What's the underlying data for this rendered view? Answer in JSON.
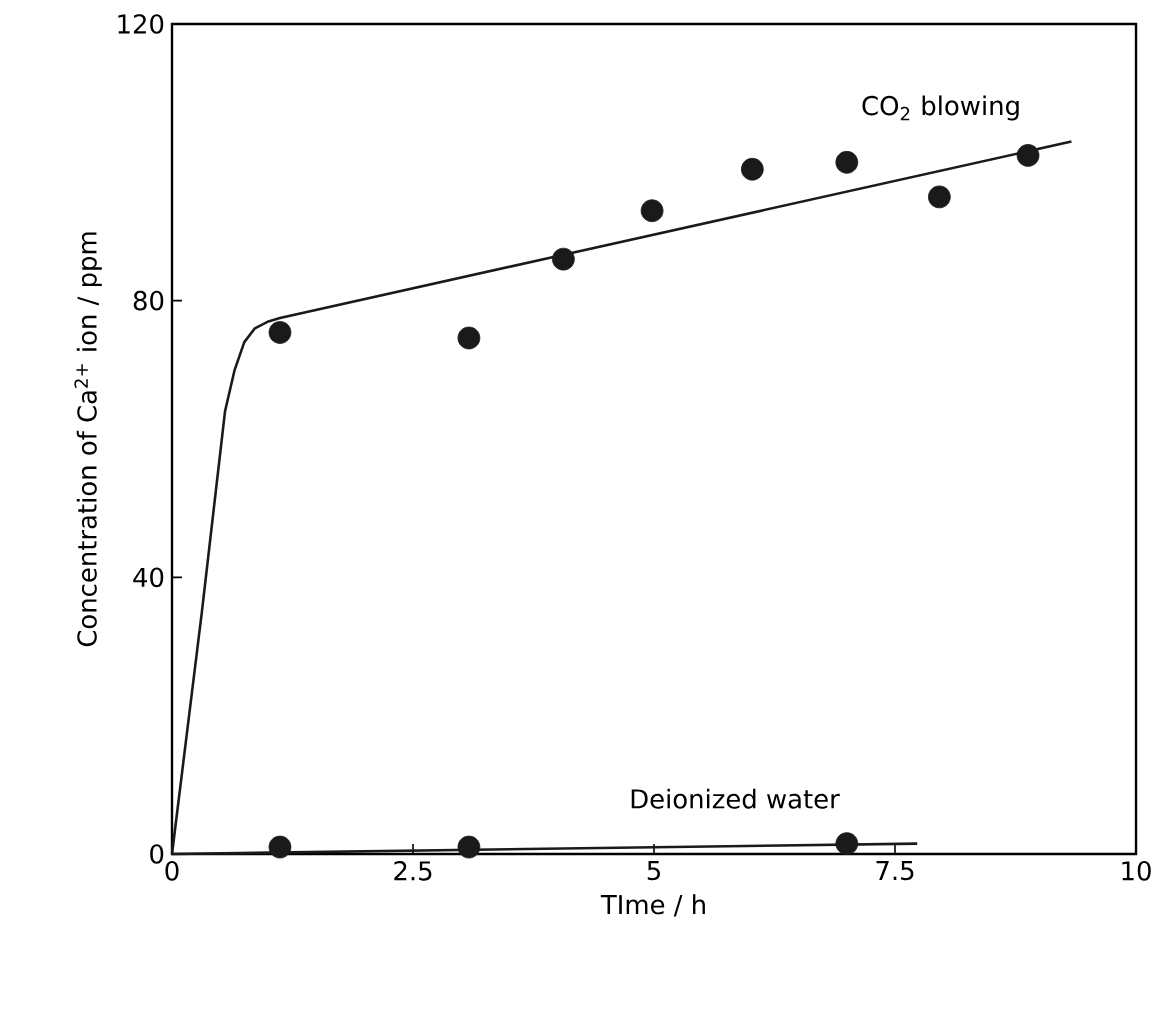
{
  "chart_data": {
    "type": "scatter",
    "xlabel": "TIme / h",
    "ylabel": "Concentration of Ca$^{2+}$ ion  / ppm",
    "xlim": [
      0,
      10
    ],
    "ylim": [
      0,
      120
    ],
    "xticks": [
      0,
      2.5,
      5,
      7.5,
      10
    ],
    "yticks": [
      0,
      40,
      80,
      120
    ],
    "grid": false,
    "marker": "circle",
    "series": [
      {
        "name": "CO$_{2}$ blowing",
        "color": "#1a1a1a",
        "x": [
          1.12,
          3.08,
          4.06,
          4.98,
          6.02,
          7.0,
          7.96,
          8.88
        ],
        "values": [
          75.4,
          74.6,
          86,
          93,
          99,
          100,
          95,
          101
        ]
      },
      {
        "name": "Deionized water",
        "color": "#1a1a1a",
        "x": [
          1.12,
          3.08,
          7.0
        ],
        "values": [
          1,
          1,
          1.5
        ]
      },
      {
        "type": "line",
        "marker": "none",
        "line_style": "solid",
        "color": "#1a1a1a",
        "x": [
          0,
          0.31,
          0.55,
          0.65,
          0.75,
          0.86,
          1.0,
          1.12,
          9.33
        ],
        "values": [
          0,
          35,
          64,
          70,
          74,
          76,
          77,
          77.5,
          103
        ]
      },
      {
        "type": "line",
        "marker": "none",
        "line_style": "solid",
        "color": "#1a1a1a",
        "x": [
          0,
          7.73
        ],
        "values": [
          0,
          1.5
        ]
      }
    ]
  }
}
